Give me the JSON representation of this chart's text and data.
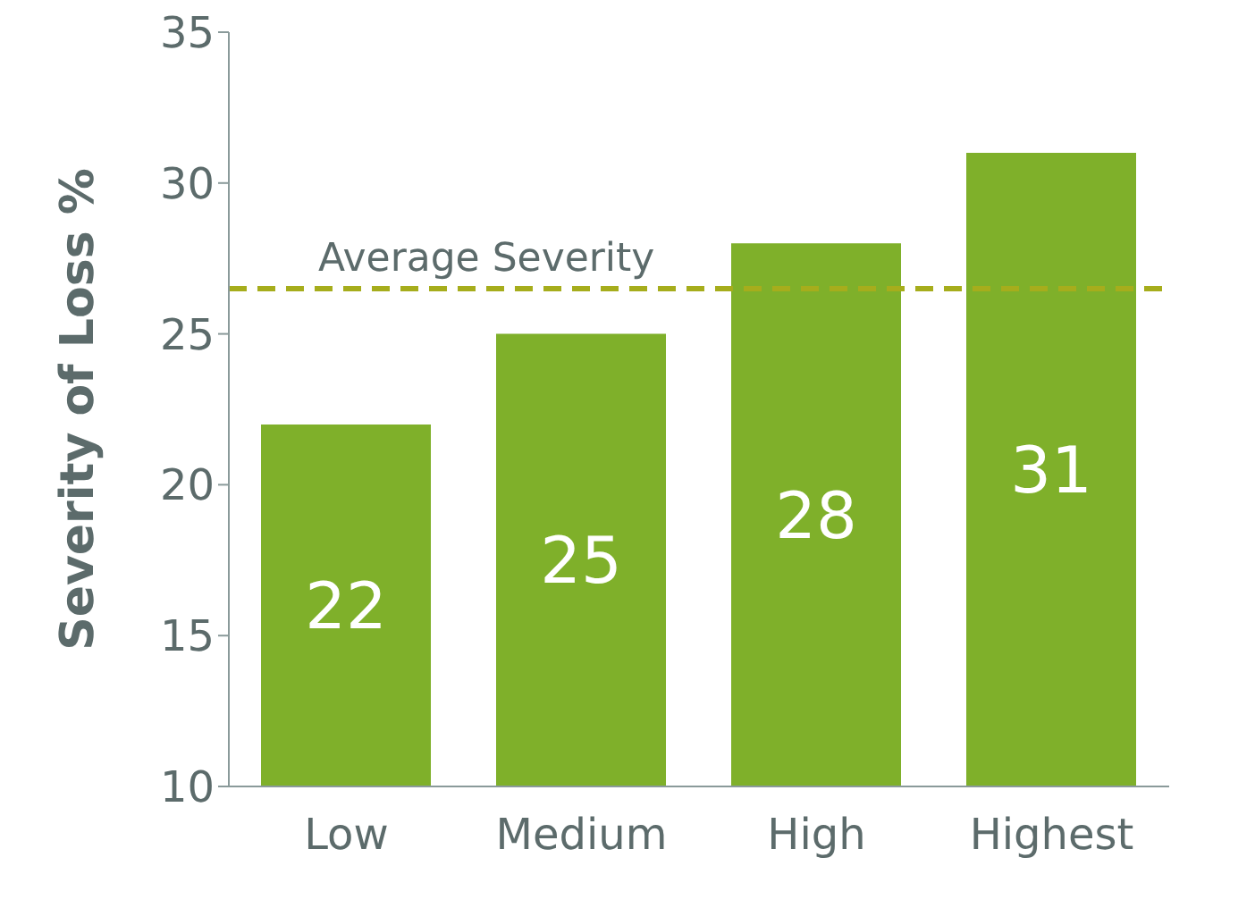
{
  "chart_data": {
    "type": "bar",
    "ylabel": "Severity of Loss %",
    "categories": [
      "Low",
      "Medium",
      "High",
      "Highest"
    ],
    "values": [
      22,
      25,
      28,
      31
    ],
    "color": "#7fb02a",
    "ylim": [
      10,
      35
    ],
    "yticks": [
      10,
      15,
      20,
      25,
      30,
      35
    ],
    "grid": false,
    "data_labels": true,
    "ref_lines": [
      {
        "axis": "y",
        "value": 26.5,
        "label": "Average Severity",
        "color": "#a6ad1c",
        "line_style": "dashed"
      }
    ]
  }
}
